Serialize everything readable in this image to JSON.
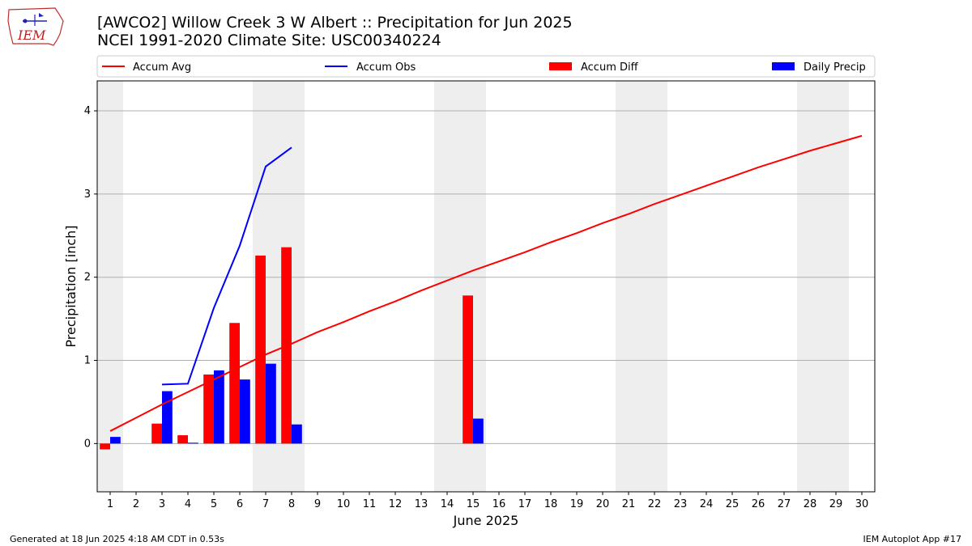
{
  "header": {
    "title_line_1": "[AWCO2] Willow Creek 3 W Albert :: Precipitation for Jun 2025",
    "title_line_2": "NCEI 1991-2020 Climate Site: USC00340224"
  },
  "logo": {
    "text": "IEM",
    "icon": "iem-iowa-logo-icon"
  },
  "footer": {
    "left": "Generated at 18 Jun 2025 4:18 AM CDT in 0.53s",
    "right": "IEM Autoplot App #17"
  },
  "colors": {
    "avg": "#ff0000",
    "obs": "#0000ff",
    "diff": "#ff0000",
    "daily": "#0000ff",
    "weekend": "#eeeeee",
    "grid": "#b0b0b0"
  },
  "chart_data": {
    "type": "bar",
    "title": "[AWCO2] Willow Creek 3 W Albert :: Precipitation for Jun 2025",
    "subtitle": "NCEI 1991-2020 Climate Site: USC00340224",
    "xlabel": "June 2025",
    "ylabel": "Precipitation [inch]",
    "xlim": [
      0.5,
      30.5
    ],
    "ylim": [
      -0.58,
      4.36
    ],
    "x_ticks": [
      1,
      2,
      3,
      4,
      5,
      6,
      7,
      8,
      9,
      10,
      11,
      12,
      13,
      14,
      15,
      16,
      17,
      18,
      19,
      20,
      21,
      22,
      23,
      24,
      25,
      26,
      27,
      28,
      29,
      30
    ],
    "y_ticks": [
      0,
      1,
      2,
      3,
      4
    ],
    "grid": true,
    "legend_placement": "top",
    "weekend_days": [
      1,
      7,
      8,
      14,
      15,
      21,
      22,
      28,
      29
    ],
    "legend": [
      {
        "label": "Accum Avg",
        "kind": "line",
        "color": "#ff0000"
      },
      {
        "label": "Accum Obs",
        "kind": "line",
        "color": "#0000ff"
      },
      {
        "label": "Accum Diff",
        "kind": "bar",
        "color": "#ff0000"
      },
      {
        "label": "Daily Precip",
        "kind": "bar",
        "color": "#0000ff"
      }
    ],
    "series": [
      {
        "name": "Accum Avg",
        "type": "line",
        "x": [
          1,
          2,
          3,
          4,
          5,
          6,
          7,
          8,
          9,
          10,
          11,
          12,
          13,
          14,
          15,
          16,
          17,
          18,
          19,
          20,
          21,
          22,
          23,
          24,
          25,
          26,
          27,
          28,
          29,
          30
        ],
        "values": [
          0.15,
          0.31,
          0.47,
          0.62,
          0.77,
          0.92,
          1.07,
          1.2,
          1.34,
          1.46,
          1.59,
          1.71,
          1.84,
          1.96,
          2.08,
          2.19,
          2.3,
          2.42,
          2.53,
          2.65,
          2.76,
          2.88,
          2.99,
          3.1,
          3.21,
          3.32,
          3.42,
          3.52,
          3.61,
          3.7
        ]
      },
      {
        "name": "Accum Obs",
        "type": "line",
        "x": [
          3,
          4,
          5,
          6,
          7,
          8
        ],
        "values": [
          0.71,
          0.72,
          1.63,
          2.38,
          3.33,
          3.56
        ]
      },
      {
        "name": "Accum Diff",
        "type": "bar",
        "x": [
          1,
          3,
          4,
          5,
          6,
          7,
          8,
          15
        ],
        "values": [
          -0.07,
          0.24,
          0.1,
          0.83,
          1.45,
          2.26,
          2.36,
          1.78
        ]
      },
      {
        "name": "Daily Precip",
        "type": "bar",
        "x": [
          1,
          3,
          4,
          5,
          6,
          7,
          8,
          15
        ],
        "values": [
          0.08,
          0.63,
          0.01,
          0.88,
          0.77,
          0.96,
          0.23,
          0.3
        ]
      }
    ]
  }
}
